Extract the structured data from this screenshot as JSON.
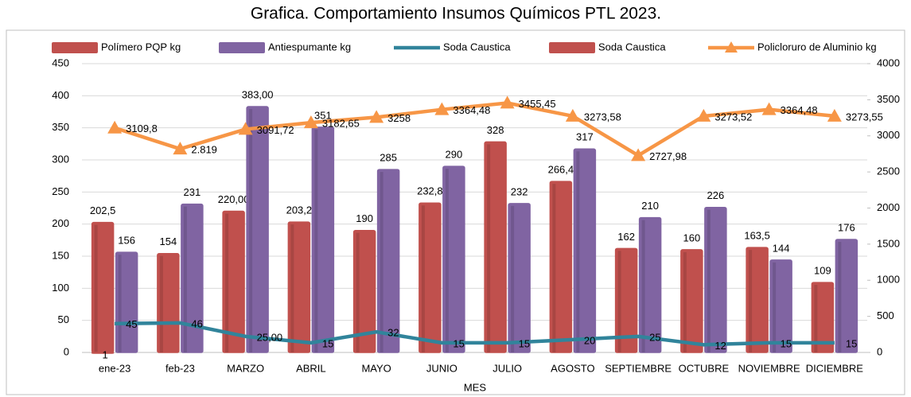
{
  "chart_data": {
    "type": "bar",
    "title": "Grafica. Comportamiento Insumos Químicos PTL 2023.",
    "x_label": "MES",
    "categories": [
      "ene-23",
      "feb-23",
      "MARZO",
      "ABRIL",
      "MAYO",
      "JUNIO",
      "JULIO",
      "AGOSTO",
      "SEPTIEMBRE",
      "OCTUBRE",
      "NOVIEMBRE",
      "DICIEMBRE"
    ],
    "ylim": [
      0,
      450
    ],
    "yticks": [
      0,
      50,
      100,
      150,
      200,
      250,
      300,
      350,
      400,
      450
    ],
    "y2lim": [
      0,
      4000
    ],
    "y2ticks": [
      0,
      500,
      1000,
      1500,
      2000,
      2500,
      3000,
      3500,
      4000
    ],
    "legend": "top",
    "annotations": [
      {
        "text": "0"
      }
    ],
    "series": [
      {
        "name": "Polímero PQP kg",
        "type": "bar",
        "color": "#c0504d",
        "values": [
          202.5,
          154,
          220,
          203.2,
          190,
          232.8,
          328,
          266.4,
          162,
          160,
          163.5,
          109
        ],
        "value_labels": [
          "202,5",
          "154",
          "220,00",
          "203,2",
          "190",
          "232,8",
          "328",
          "266,4",
          "162",
          "160",
          "163,5",
          "109"
        ]
      },
      {
        "name": "Antiespumante kg",
        "type": "bar",
        "color": "#8064a2",
        "values": [
          156,
          231,
          383,
          351,
          285,
          290,
          232,
          317,
          210,
          226,
          144,
          176
        ],
        "value_labels": [
          "156",
          "231",
          "383,00",
          "351",
          "285",
          "290",
          "232",
          "317",
          "210",
          "226",
          "144",
          "176"
        ]
      },
      {
        "name": "Soda Caustica",
        "type": "line",
        "color": "#31849b",
        "values": [
          45,
          46,
          25,
          15,
          32,
          15,
          15,
          20,
          25,
          12,
          15,
          15
        ],
        "value_labels": [
          "45",
          "46",
          "25,00",
          "15",
          "32",
          "15",
          "15",
          "20",
          "25",
          "12",
          "15",
          "15"
        ]
      },
      {
        "name": "Soda Caustica",
        "type": "bar",
        "color": "#c0504d",
        "values": [
          1,
          null,
          null,
          null,
          null,
          null,
          null,
          null,
          null,
          null,
          null,
          null
        ]
      },
      {
        "name": "Policloruro de Aluminio kg",
        "type": "line",
        "axis": "y2",
        "color": "#f79646",
        "marker": "triangle",
        "values": [
          3109.8,
          2819,
          3091.72,
          3182.65,
          3258,
          3364.48,
          3455.45,
          3273.58,
          2727.98,
          3273.52,
          3364.48,
          3273.55
        ],
        "value_labels": [
          "3109,8",
          "2.819",
          "3091,72",
          "3182,65",
          "3258",
          "3364,48",
          "3455,45",
          "3273,58",
          "2727,98",
          "3273,52",
          "3364,48",
          "3273,55"
        ]
      }
    ]
  }
}
